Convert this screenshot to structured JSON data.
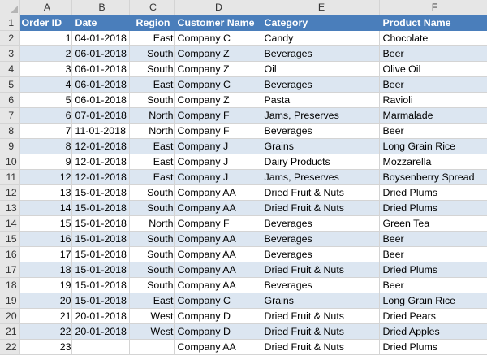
{
  "columns": [
    "A",
    "B",
    "C",
    "D",
    "E",
    "F"
  ],
  "header": [
    "Order ID",
    "Date",
    "Region",
    "Customer Name",
    "Category",
    "Product Name"
  ],
  "rows": [
    [
      "1",
      "04-01-2018",
      "East",
      "Company C",
      "Candy",
      "Chocolate"
    ],
    [
      "2",
      "06-01-2018",
      "South",
      "Company Z",
      "Beverages",
      "Beer"
    ],
    [
      "3",
      "06-01-2018",
      "South",
      "Company Z",
      "Oil",
      "Olive Oil"
    ],
    [
      "4",
      "06-01-2018",
      "East",
      "Company C",
      "Beverages",
      "Beer"
    ],
    [
      "5",
      "06-01-2018",
      "South",
      "Company Z",
      "Pasta",
      "Ravioli"
    ],
    [
      "6",
      "07-01-2018",
      "North",
      "Company F",
      "Jams, Preserves",
      "Marmalade"
    ],
    [
      "7",
      "11-01-2018",
      "North",
      "Company F",
      "Beverages",
      "Beer"
    ],
    [
      "8",
      "12-01-2018",
      "East",
      "Company J",
      "Grains",
      "Long Grain Rice"
    ],
    [
      "9",
      "12-01-2018",
      "East",
      "Company J",
      "Dairy Products",
      "Mozzarella"
    ],
    [
      "12",
      "12-01-2018",
      "East",
      "Company J",
      "Jams, Preserves",
      "Boysenberry Spread"
    ],
    [
      "13",
      "15-01-2018",
      "South",
      "Company AA",
      "Dried Fruit & Nuts",
      "Dried Plums"
    ],
    [
      "14",
      "15-01-2018",
      "South",
      "Company AA",
      "Dried Fruit & Nuts",
      "Dried Plums"
    ],
    [
      "15",
      "15-01-2018",
      "North",
      "Company F",
      "Beverages",
      "Green Tea"
    ],
    [
      "16",
      "15-01-2018",
      "South",
      "Company AA",
      "Beverages",
      "Beer"
    ],
    [
      "17",
      "15-01-2018",
      "South",
      "Company AA",
      "Beverages",
      "Beer"
    ],
    [
      "18",
      "15-01-2018",
      "South",
      "Company AA",
      "Dried Fruit & Nuts",
      "Dried Plums"
    ],
    [
      "19",
      "15-01-2018",
      "South",
      "Company AA",
      "Beverages",
      "Beer"
    ],
    [
      "20",
      "15-01-2018",
      "East",
      "Company C",
      "Grains",
      "Long Grain Rice"
    ],
    [
      "21",
      "20-01-2018",
      "West",
      "Company D",
      "Dried Fruit & Nuts",
      "Dried Pears"
    ],
    [
      "22",
      "20-01-2018",
      "West",
      "Company D",
      "Dried Fruit & Nuts",
      "Dried Apples"
    ],
    [
      "23",
      "",
      "",
      "Company AA",
      "Dried Fruit & Nuts",
      "Dried Plums"
    ]
  ],
  "row_numbers": [
    "1",
    "2",
    "3",
    "4",
    "5",
    "6",
    "7",
    "8",
    "9",
    "10",
    "11",
    "12",
    "13",
    "14",
    "15",
    "16",
    "17",
    "18",
    "19",
    "20",
    "21",
    "22"
  ],
  "colors": {
    "header_bg": "#4a7ebb",
    "header_text": "#ffffff",
    "band_bg": "#dce6f1",
    "chrome_bg": "#e6e6e6"
  }
}
